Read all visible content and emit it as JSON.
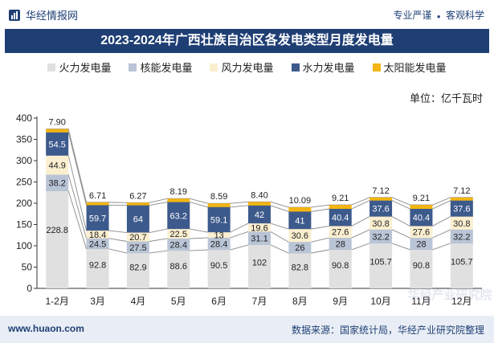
{
  "header": {
    "brand": "华经情报网",
    "tagline_left": "专业严谨",
    "tagline_sep": "●",
    "tagline_right": "客观科学",
    "title": "2023-2024年广西壮族自治区各发电类型月度发电量"
  },
  "unit_label": "单位：亿千瓦时",
  "footer": {
    "website": "www.huaon.com",
    "source": "数据来源：国家统计局，华经产业研究院整理"
  },
  "watermark": "华经产业研究院",
  "colors": {
    "thermal": "#e0e0e0",
    "nuclear": "#b9c4d6",
    "wind": "#fbefd0",
    "hydro": "#3d5a8c",
    "solar": "#f3b511",
    "title_bg": "#1f3f74"
  },
  "chart_data": {
    "type": "bar",
    "stacked": true,
    "categories": [
      "1-2月",
      "3月",
      "4月",
      "5月",
      "6月",
      "7月",
      "8月",
      "9月",
      "10月",
      "11月",
      "12月"
    ],
    "ylim": [
      0,
      400
    ],
    "yticks": [
      0,
      50,
      100,
      150,
      200,
      250,
      300,
      350,
      400
    ],
    "legend_position": "top",
    "series": [
      {
        "key": "thermal",
        "name": "火力发电量",
        "values": [
          228.8,
          92.8,
          82.9,
          88.6,
          90.5,
          102,
          82.8,
          90.8,
          105.7,
          90.8,
          105.7
        ]
      },
      {
        "key": "nuclear",
        "name": "核能发电量",
        "values": [
          38.2,
          24.5,
          27.5,
          28.4,
          28.4,
          31.1,
          26,
          28,
          32.2,
          28,
          32.2
        ]
      },
      {
        "key": "wind",
        "name": "风力发电量",
        "values": [
          44.9,
          18.4,
          20.7,
          22.5,
          13,
          19.6,
          30.6,
          27.6,
          30.8,
          27.6,
          30.8
        ]
      },
      {
        "key": "hydro",
        "name": "水力发电量",
        "values": [
          54.5,
          59.7,
          64,
          63.2,
          59.1,
          42,
          41,
          40.4,
          37.6,
          40.4,
          37.6
        ]
      },
      {
        "key": "solar",
        "name": "太阳能发电量",
        "values": [
          7.9,
          6.71,
          6.27,
          8.19,
          8.59,
          8.4,
          10.09,
          9.21,
          7.12,
          9.21,
          7.12
        ]
      }
    ],
    "value_labels": {
      "thermal": [
        "228.8",
        "92.8",
        "82.9",
        "88.6",
        "90.5",
        "102",
        "82.8",
        "90.8",
        "105.7",
        "90.8",
        "105.7"
      ],
      "nuclear": [
        "38.2",
        "24.5",
        "27.5",
        "28.4",
        "28.4",
        "31.1",
        "26",
        "28",
        "32.2",
        "28",
        "32.2"
      ],
      "wind": [
        "44.9",
        "18.4",
        "20.7",
        "22.5",
        "13",
        "19.6",
        "30.6",
        "27.6",
        "30.8",
        "27.6",
        "30.8"
      ],
      "hydro": [
        "54.5",
        "59.7",
        "64",
        "63.2",
        "59.1",
        "42",
        "41",
        "40.4",
        "37.6",
        "40.4",
        "37.6"
      ],
      "solar": [
        "7.90",
        "6.71",
        "6.27",
        "8.19",
        "8.59",
        "8.40",
        "10.09",
        "9.21",
        "7.12",
        "9.21",
        "7.12"
      ]
    }
  }
}
